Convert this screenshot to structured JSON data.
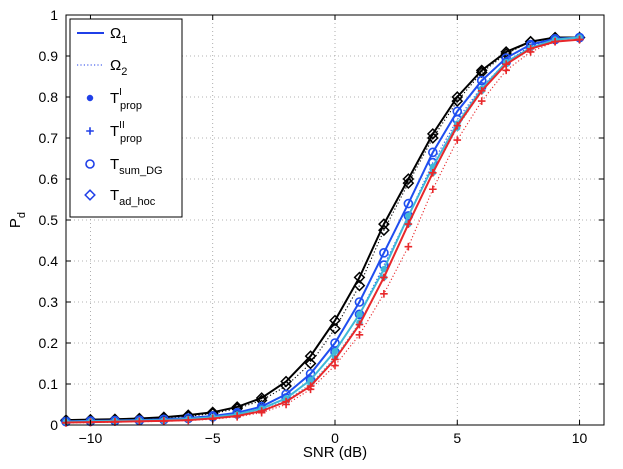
{
  "chart_data": {
    "type": "line",
    "title": "",
    "xlabel": "SNR (dB)",
    "ylabel": {
      "main": "P",
      "sub": "d"
    },
    "xlim": [
      -11,
      11
    ],
    "ylim": [
      0,
      1
    ],
    "xticks": [
      -10,
      -5,
      0,
      5,
      10
    ],
    "yticks": [
      0,
      0.1,
      0.2,
      0.3,
      0.4,
      0.5,
      0.6,
      0.7,
      0.8,
      0.9,
      1
    ],
    "xtick_labels": [
      "−10",
      "−5",
      "0",
      "5",
      "10"
    ],
    "ytick_labels": [
      "0",
      "0.1",
      "0.2",
      "0.3",
      "0.4",
      "0.5",
      "0.6",
      "0.7",
      "0.8",
      "0.9",
      "1"
    ],
    "grid": true,
    "legend_position": "top-left",
    "x": [
      -11,
      -10,
      -9,
      -8,
      -7,
      -6,
      -5,
      -4,
      -3,
      -2,
      -1,
      0,
      1,
      2,
      3,
      4,
      5,
      6,
      7,
      8,
      9,
      10
    ],
    "legend": [
      {
        "kind": "line",
        "style": "solid",
        "main": "Ω",
        "sub": "1",
        "sup": ""
      },
      {
        "kind": "line",
        "style": "dotted",
        "main": "Ω",
        "sub": "2",
        "sup": ""
      },
      {
        "kind": "marker",
        "marker": "dot",
        "main": "T",
        "sub": "prop",
        "sup": "I"
      },
      {
        "kind": "marker",
        "marker": "plus",
        "main": "T",
        "sub": "prop",
        "sup": "II"
      },
      {
        "kind": "marker",
        "marker": "circle",
        "main": "T",
        "sub": "sum_DG",
        "sup": ""
      },
      {
        "kind": "marker",
        "marker": "diamond",
        "main": "T",
        "sub": "ad_hoc",
        "sup": ""
      }
    ],
    "series": [
      {
        "name": "T_ad_hoc Ω_1",
        "color": "#000000",
        "style": "solid",
        "marker": "diamond",
        "values": [
          0.012,
          0.013,
          0.014,
          0.016,
          0.019,
          0.024,
          0.031,
          0.044,
          0.066,
          0.106,
          0.168,
          0.255,
          0.36,
          0.49,
          0.6,
          0.71,
          0.8,
          0.865,
          0.91,
          0.935,
          0.945,
          0.945
        ]
      },
      {
        "name": "T_ad_hoc Ω_2",
        "color": "#000000",
        "style": "dotted",
        "marker": "diamond",
        "values": [
          0.01,
          0.011,
          0.012,
          0.014,
          0.017,
          0.021,
          0.028,
          0.04,
          0.06,
          0.095,
          0.15,
          0.235,
          0.34,
          0.475,
          0.59,
          0.7,
          0.79,
          0.86,
          0.905,
          0.935,
          0.945,
          0.945
        ]
      },
      {
        "name": "T_sum_DG Ω_1",
        "color": "#1f4ef0",
        "style": "solid",
        "marker": "circle",
        "values": [
          0.009,
          0.01,
          0.011,
          0.012,
          0.014,
          0.017,
          0.022,
          0.03,
          0.045,
          0.075,
          0.125,
          0.2,
          0.3,
          0.42,
          0.54,
          0.665,
          0.765,
          0.84,
          0.895,
          0.928,
          0.942,
          0.945
        ]
      },
      {
        "name": "T_sum_DG Ω_2",
        "color": "#1f4ef0",
        "style": "dotted",
        "marker": "circle",
        "values": [
          0.008,
          0.009,
          0.01,
          0.011,
          0.013,
          0.016,
          0.02,
          0.027,
          0.04,
          0.066,
          0.11,
          0.178,
          0.27,
          0.39,
          0.51,
          0.64,
          0.745,
          0.825,
          0.885,
          0.925,
          0.94,
          0.945
        ]
      },
      {
        "name": "T^I_prop Ω_1",
        "color": "#3fb8d8",
        "style": "solid",
        "marker": "dot",
        "values": [
          0.008,
          0.009,
          0.01,
          0.011,
          0.012,
          0.015,
          0.019,
          0.026,
          0.04,
          0.065,
          0.11,
          0.18,
          0.27,
          0.38,
          0.51,
          0.63,
          0.735,
          0.82,
          0.885,
          0.92,
          0.94,
          0.945
        ]
      },
      {
        "name": "T^I_prop Ω_2",
        "color": "#3fb8d8",
        "style": "dotted",
        "marker": "dot",
        "values": [
          0.007,
          0.008,
          0.009,
          0.01,
          0.011,
          0.014,
          0.018,
          0.024,
          0.036,
          0.06,
          0.1,
          0.165,
          0.25,
          0.36,
          0.49,
          0.615,
          0.725,
          0.815,
          0.88,
          0.92,
          0.94,
          0.945
        ]
      },
      {
        "name": "T^II_prop Ω_1",
        "color": "#e8282b",
        "style": "solid",
        "marker": "plus",
        "values": [
          0.006,
          0.007,
          0.008,
          0.009,
          0.01,
          0.012,
          0.016,
          0.022,
          0.034,
          0.057,
          0.095,
          0.16,
          0.245,
          0.36,
          0.49,
          0.615,
          0.73,
          0.815,
          0.88,
          0.918,
          0.935,
          0.94
        ]
      },
      {
        "name": "T^II_prop Ω_2",
        "color": "#e8282b",
        "style": "dotted",
        "marker": "plus",
        "values": [
          0.005,
          0.006,
          0.007,
          0.008,
          0.009,
          0.011,
          0.014,
          0.02,
          0.03,
          0.05,
          0.087,
          0.145,
          0.22,
          0.32,
          0.435,
          0.575,
          0.695,
          0.79,
          0.865,
          0.91,
          0.935,
          0.94
        ]
      }
    ]
  }
}
